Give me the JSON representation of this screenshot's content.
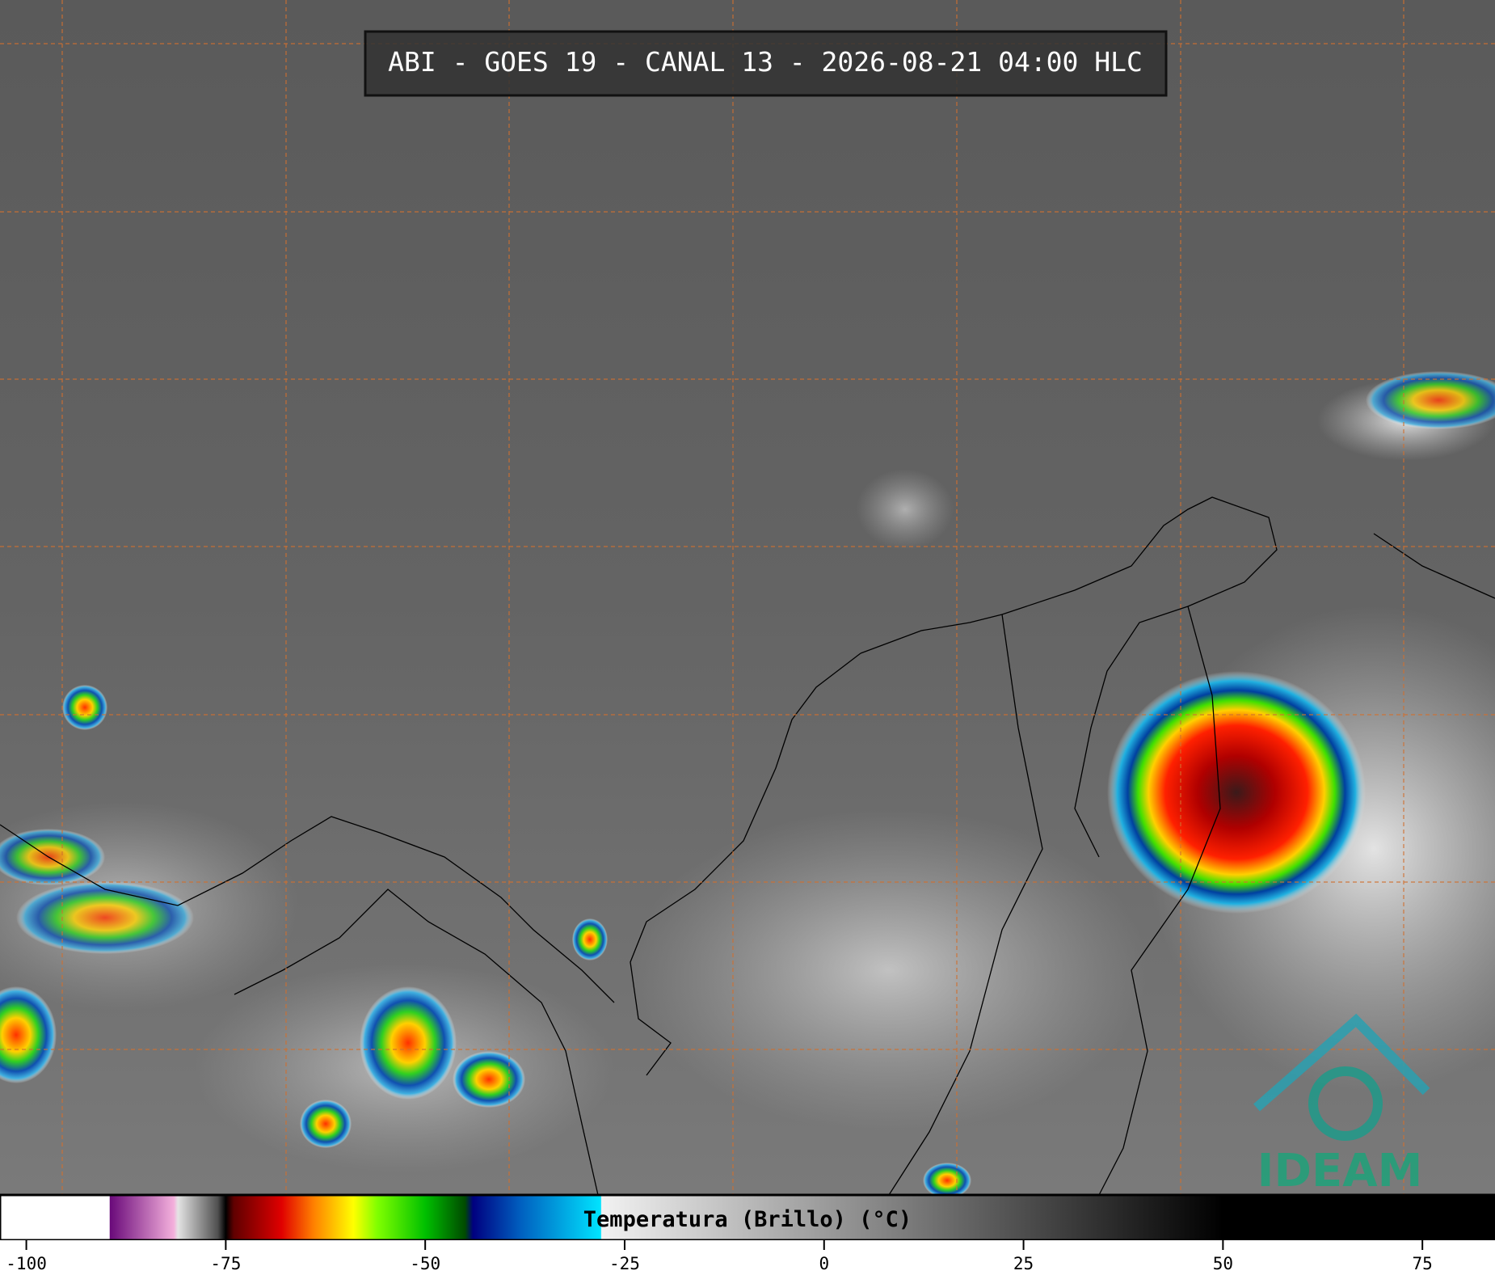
{
  "header": {
    "title": "ABI - GOES 19 - CANAL 13 - 2026-08-21 04:00 HLC"
  },
  "colorbar": {
    "label": "Temperatura (Brillo) (°C)",
    "lim": [
      -103.3,
      84.1
    ],
    "ticks": [
      -100,
      -75,
      -50,
      -25,
      0,
      25,
      50,
      75
    ],
    "stops": [
      {
        "value": -103.3,
        "color": "#ffffff"
      },
      {
        "value": -89.6,
        "color": "#ffffff"
      },
      {
        "value": -89.5,
        "color": "#6a0a7a"
      },
      {
        "value": -81.5,
        "color": "#f4b0dc"
      },
      {
        "value": -81,
        "color": "#e4e4e4"
      },
      {
        "value": -76,
        "color": "#505050"
      },
      {
        "value": -75,
        "color": "#000000"
      },
      {
        "value": -74,
        "color": "#600000"
      },
      {
        "value": -68,
        "color": "#e00000"
      },
      {
        "value": -64,
        "color": "#ff8000"
      },
      {
        "value": -59,
        "color": "#ffff00"
      },
      {
        "value": -56,
        "color": "#80ff00"
      },
      {
        "value": -50,
        "color": "#00c000"
      },
      {
        "value": -45,
        "color": "#004a00"
      },
      {
        "value": -44,
        "color": "#000080"
      },
      {
        "value": -38,
        "color": "#0060c0"
      },
      {
        "value": -28,
        "color": "#00e4ff"
      },
      {
        "value": -27.9,
        "color": "#f2f2f2"
      },
      {
        "value": 50,
        "color": "#000000"
      },
      {
        "value": 84.1,
        "color": "#000000"
      }
    ]
  },
  "logo": {
    "text": "IDEAM"
  }
}
